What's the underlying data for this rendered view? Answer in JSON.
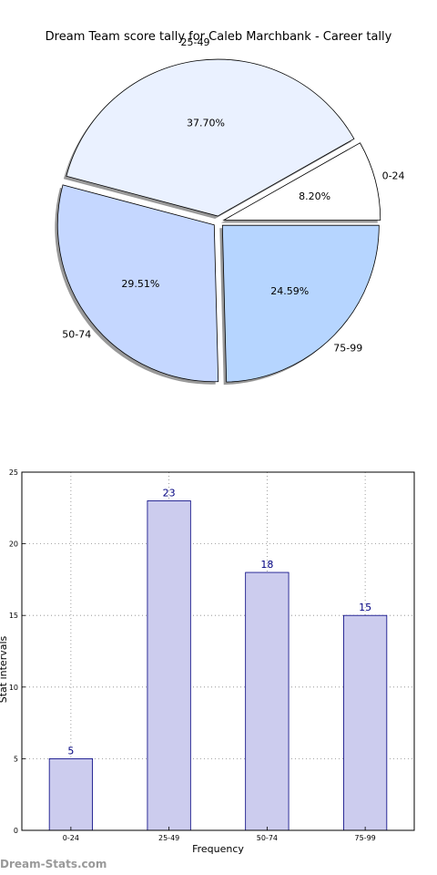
{
  "chart_data": [
    {
      "type": "pie",
      "title": "Dream Team score tally for Caleb Marchbank - Career tally",
      "categories": [
        "0-24",
        "25-49",
        "50-74",
        "75-99"
      ],
      "values": [
        5,
        23,
        18,
        15
      ],
      "percent_labels": [
        "8.20%",
        "37.70%",
        "29.51%",
        "24.59%"
      ],
      "colors": [
        "#ffffff",
        "#eaf1ff",
        "#c5d7ff",
        "#b6d5ff"
      ],
      "exploded": true,
      "shadow": true
    },
    {
      "type": "bar",
      "categories": [
        "0-24",
        "25-49",
        "50-74",
        "75-99"
      ],
      "values": [
        5,
        23,
        18,
        15
      ],
      "value_labels": [
        "5",
        "23",
        "18",
        "15"
      ],
      "xlabel": "Frequency",
      "ylabel": "Stat intervals",
      "ylim": [
        0,
        25
      ],
      "yticks": [
        "0",
        "5",
        "10",
        "15",
        "20",
        "25"
      ],
      "bar_color": "#ccccee",
      "edge_color": "#000080",
      "label_color": "#000080",
      "grid": true
    }
  ],
  "watermark": "Dream-Stats.com"
}
